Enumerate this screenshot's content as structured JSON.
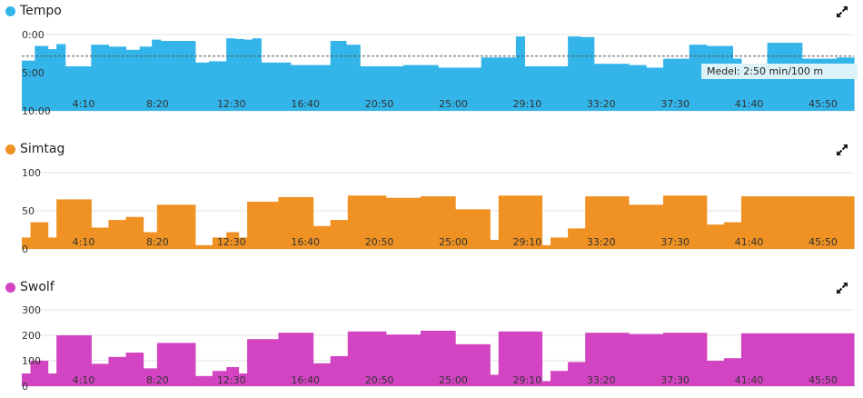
{
  "charts": {
    "tempo": {
      "title": "Tempo",
      "color": "#33b5e9",
      "icon": "expand-icon",
      "chart_data": {
        "type": "area",
        "x_ticks": [
          "4:10",
          "8:20",
          "12:30",
          "16:40",
          "20:50",
          "25:00",
          "29:10",
          "33:20",
          "37:30",
          "41:40",
          "45:50"
        ],
        "y_ticks": [
          "0:00",
          "5:00",
          "10:00"
        ],
        "y_unit": "min/100 m",
        "ylim_seconds": [
          0,
          600
        ],
        "y_inverted": true,
        "x_range": [
          0,
          48
        ],
        "steps_seconds": [
          [
            0,
            0.75,
            205
          ],
          [
            0.75,
            1.5,
            90
          ],
          [
            1.5,
            2.0,
            115
          ],
          [
            2.0,
            2.5,
            75
          ],
          [
            2.5,
            4.0,
            250
          ],
          [
            4.0,
            5.0,
            80
          ],
          [
            5.0,
            6.0,
            95
          ],
          [
            6.0,
            6.8,
            120
          ],
          [
            6.8,
            7.5,
            95
          ],
          [
            7.5,
            8.0,
            40
          ],
          [
            8.0,
            10.0,
            50
          ],
          [
            10.0,
            10.8,
            220
          ],
          [
            10.8,
            11.8,
            210
          ],
          [
            11.8,
            12.3,
            30
          ],
          [
            12.3,
            12.8,
            35
          ],
          [
            12.8,
            13.3,
            40
          ],
          [
            13.3,
            13.8,
            30
          ],
          [
            13.8,
            15.5,
            220
          ],
          [
            15.5,
            17.8,
            240
          ],
          [
            17.8,
            18.7,
            50
          ],
          [
            18.7,
            19.5,
            80
          ],
          [
            19.5,
            22.0,
            250
          ],
          [
            22.0,
            24.0,
            240
          ],
          [
            24.0,
            26.5,
            260
          ],
          [
            26.5,
            28.5,
            180
          ],
          [
            28.5,
            29.0,
            15
          ],
          [
            29.0,
            31.5,
            250
          ],
          [
            31.5,
            32.2,
            15
          ],
          [
            32.2,
            33.0,
            20
          ],
          [
            33.0,
            35.0,
            230
          ],
          [
            35.0,
            36.0,
            240
          ],
          [
            36.0,
            37.0,
            260
          ],
          [
            37.0,
            38.5,
            190
          ],
          [
            38.5,
            39.5,
            80
          ],
          [
            39.5,
            41.0,
            90
          ],
          [
            41.0,
            41.5,
            190
          ],
          [
            41.5,
            43.0,
            245
          ],
          [
            43.0,
            45.0,
            65
          ],
          [
            45.0,
            47.0,
            190
          ],
          [
            47.0,
            48.0,
            180
          ]
        ],
        "average_seconds": 170,
        "annotation": "Medel: 2:50 min/100 m"
      }
    },
    "cadence": {
      "title": "Simtag",
      "color": "#ef9223",
      "icon": "expand-icon",
      "chart_data": {
        "type": "area",
        "x_ticks": [
          "4:10",
          "8:20",
          "12:30",
          "16:40",
          "20:50",
          "25:00",
          "29:10",
          "33:20",
          "37:30",
          "41:40",
          "45:50"
        ],
        "y_ticks": [
          "0",
          "50",
          "100"
        ],
        "ylim": [
          0,
          100
        ],
        "x_range": [
          0,
          48
        ],
        "steps": [
          [
            0,
            0.5,
            15
          ],
          [
            0.5,
            1.5,
            35
          ],
          [
            1.5,
            2.0,
            15
          ],
          [
            2.0,
            4.0,
            65
          ],
          [
            4.0,
            5.0,
            28
          ],
          [
            5.0,
            6.0,
            38
          ],
          [
            6.0,
            7.0,
            42
          ],
          [
            7.0,
            7.8,
            22
          ],
          [
            7.8,
            10.0,
            58
          ],
          [
            10.0,
            11.0,
            5
          ],
          [
            11.0,
            11.8,
            15
          ],
          [
            11.8,
            12.5,
            22
          ],
          [
            12.5,
            13.0,
            15
          ],
          [
            13.0,
            14.8,
            62
          ],
          [
            14.8,
            16.8,
            68
          ],
          [
            16.8,
            17.8,
            30
          ],
          [
            17.8,
            18.8,
            38
          ],
          [
            18.8,
            21.0,
            70
          ],
          [
            21.0,
            23.0,
            67
          ],
          [
            23.0,
            25.0,
            69
          ],
          [
            25.0,
            27.0,
            52
          ],
          [
            27.0,
            27.5,
            12
          ],
          [
            27.5,
            30.0,
            70
          ],
          [
            30.0,
            30.5,
            5
          ],
          [
            30.5,
            31.5,
            15
          ],
          [
            31.5,
            32.5,
            27
          ],
          [
            32.5,
            35.0,
            69
          ],
          [
            35.0,
            37.0,
            58
          ],
          [
            37.0,
            39.5,
            70
          ],
          [
            39.5,
            40.5,
            32
          ],
          [
            40.5,
            41.5,
            35
          ],
          [
            41.5,
            48.0,
            69
          ]
        ]
      }
    },
    "swolf": {
      "title": "Swolf",
      "color": "#d244c1",
      "icon": "expand-icon",
      "chart_data": {
        "type": "area",
        "x_ticks": [
          "4:10",
          "8:20",
          "12:30",
          "16:40",
          "20:50",
          "25:00",
          "29:10",
          "33:20",
          "37:30",
          "41:40",
          "45:50"
        ],
        "y_ticks": [
          "0",
          "100",
          "200",
          "300"
        ],
        "ylim": [
          0,
          300
        ],
        "x_range": [
          0,
          48
        ],
        "steps": [
          [
            0,
            0.5,
            50
          ],
          [
            0.5,
            1.5,
            100
          ],
          [
            1.5,
            2.0,
            50
          ],
          [
            2.0,
            4.0,
            200
          ],
          [
            4.0,
            5.0,
            88
          ],
          [
            5.0,
            6.0,
            115
          ],
          [
            6.0,
            7.0,
            132
          ],
          [
            7.0,
            7.8,
            70
          ],
          [
            7.8,
            10.0,
            170
          ],
          [
            10.0,
            11.0,
            40
          ],
          [
            11.0,
            11.8,
            60
          ],
          [
            11.8,
            12.5,
            75
          ],
          [
            12.5,
            13.0,
            50
          ],
          [
            13.0,
            14.8,
            185
          ],
          [
            14.8,
            16.8,
            210
          ],
          [
            16.8,
            17.8,
            90
          ],
          [
            17.8,
            18.8,
            118
          ],
          [
            18.8,
            21.0,
            215
          ],
          [
            21.0,
            23.0,
            203
          ],
          [
            23.0,
            25.0,
            218
          ],
          [
            25.0,
            27.0,
            165
          ],
          [
            27.0,
            27.5,
            45
          ],
          [
            27.5,
            30.0,
            215
          ],
          [
            30.0,
            30.5,
            20
          ],
          [
            30.5,
            31.5,
            60
          ],
          [
            31.5,
            32.5,
            95
          ],
          [
            32.5,
            35.0,
            210
          ],
          [
            35.0,
            37.0,
            205
          ],
          [
            37.0,
            39.5,
            210
          ],
          [
            39.5,
            40.5,
            100
          ],
          [
            40.5,
            41.5,
            110
          ],
          [
            41.5,
            48.0,
            208
          ]
        ]
      }
    }
  }
}
